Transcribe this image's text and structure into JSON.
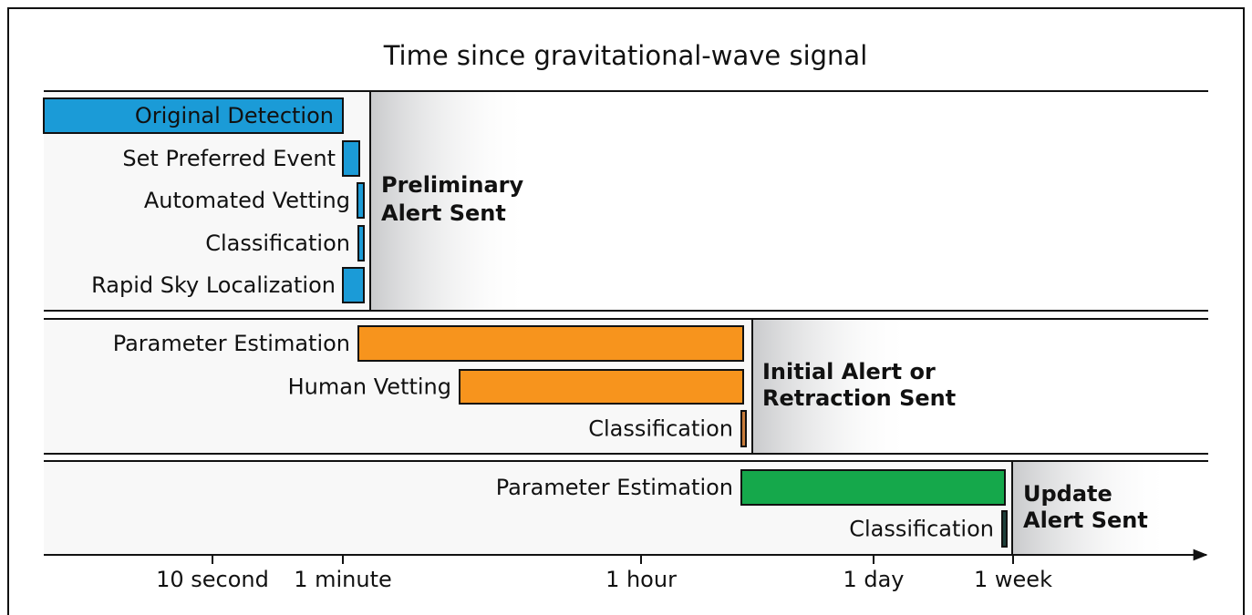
{
  "title": "Time since gravitational-wave signal",
  "panels": [
    {
      "tasks": [
        "Original Detection",
        "Set Preferred Event",
        "Automated Vetting",
        "Classification",
        "Rapid Sky Localization"
      ],
      "alert": [
        "Preliminary",
        "Alert Sent"
      ]
    },
    {
      "tasks": [
        "Parameter Estimation",
        "Human Vetting",
        "Classification"
      ],
      "alert": [
        "Initial Alert or",
        "Retraction Sent"
      ]
    },
    {
      "tasks": [
        "Parameter Estimation",
        "Classification"
      ],
      "alert": [
        "Update",
        "Alert Sent"
      ]
    }
  ],
  "axis": {
    "ticks": [
      "10 second",
      "1 minute",
      "1 hour",
      "1 day",
      "1 week"
    ]
  }
}
